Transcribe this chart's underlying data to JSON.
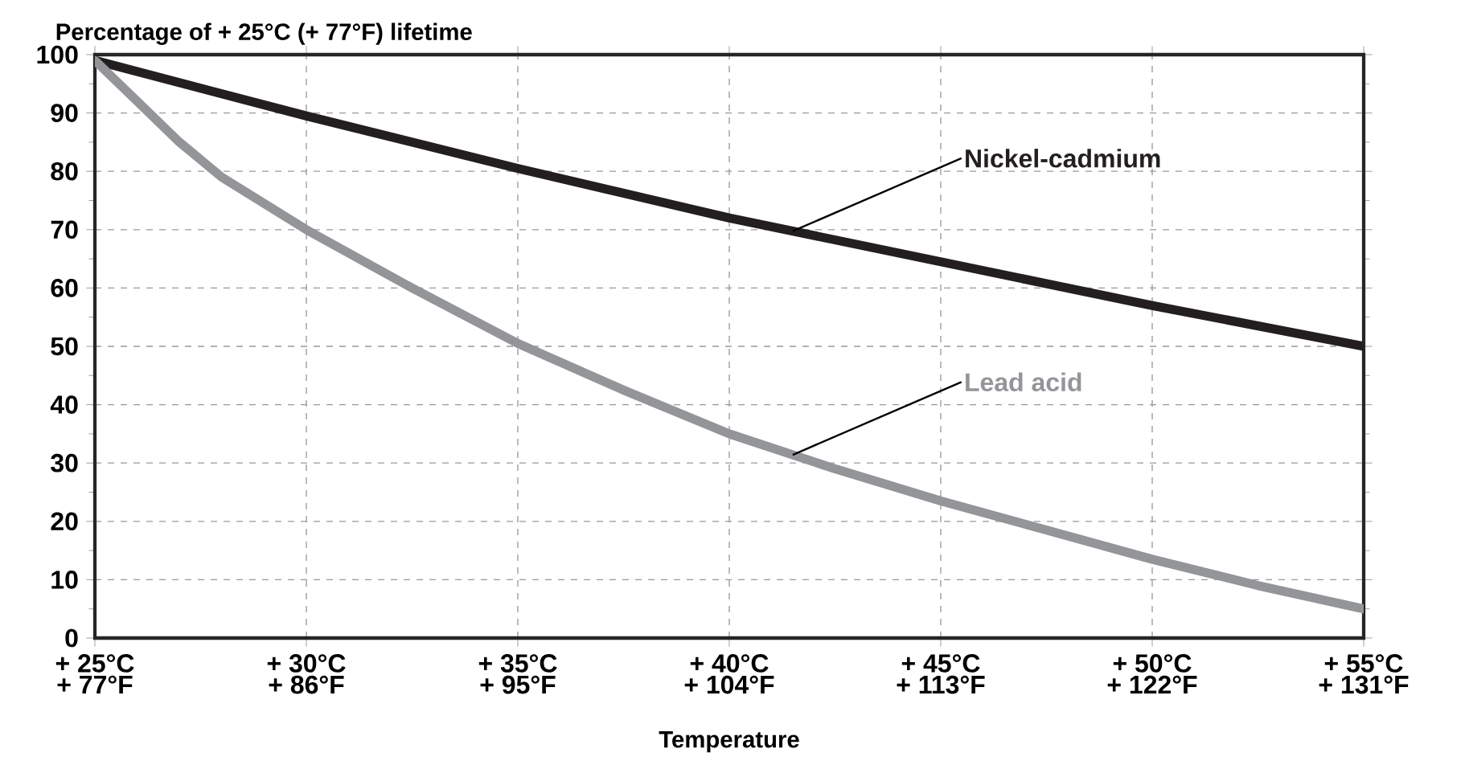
{
  "chart_data": {
    "type": "line",
    "ylabel": "Percentage of + 25°C (+ 77°F) lifetime",
    "xlabel": "Temperature",
    "xlim": [
      25,
      55
    ],
    "ylim": [
      0,
      100
    ],
    "xticks": [
      {
        "value": 25,
        "label": "+ 25°C"
      },
      {
        "value": 30,
        "label": "+ 30°C"
      },
      {
        "value": 35,
        "label": "+ 35°C"
      },
      {
        "value": 40,
        "label": "+ 40°C"
      },
      {
        "value": 45,
        "label": "+ 45°C"
      },
      {
        "value": 50,
        "label": "+ 50°C"
      },
      {
        "value": 55,
        "label": "+ 55°C"
      }
    ],
    "x2lim": [
      77,
      131
    ],
    "x2ticks": [
      {
        "value": 77,
        "label": "+ 77°F"
      },
      {
        "value": 86,
        "label": "+ 86°F"
      },
      {
        "value": 95,
        "label": "+ 95°F"
      },
      {
        "value": 104,
        "label": "+ 104°F"
      },
      {
        "value": 113,
        "label": "+ 113°F"
      },
      {
        "value": 122,
        "label": "+ 122°F"
      },
      {
        "value": 131,
        "label": "+ 131°F"
      }
    ],
    "yticks": [
      0,
      10,
      20,
      30,
      40,
      50,
      60,
      70,
      80,
      90,
      100
    ],
    "grid": true,
    "legend": false,
    "marker": "none",
    "line_style": "solid",
    "series": [
      {
        "name": "Nickel-cadmium",
        "color": "#231f20",
        "x": [
          25,
          30,
          35,
          40,
          45,
          50,
          55
        ],
        "values": [
          99,
          89.5,
          80.5,
          72,
          64.5,
          57,
          50
        ]
      },
      {
        "name": "Lead acid",
        "color": "#939598",
        "x": [
          25,
          26,
          27,
          28,
          30,
          32.5,
          35,
          37.5,
          40,
          42.5,
          45,
          47.5,
          50,
          52.5,
          55
        ],
        "values": [
          99,
          92,
          85,
          79,
          70,
          60,
          50.5,
          42.5,
          35,
          29,
          23.5,
          18.5,
          13.5,
          9,
          5
        ]
      }
    ]
  }
}
